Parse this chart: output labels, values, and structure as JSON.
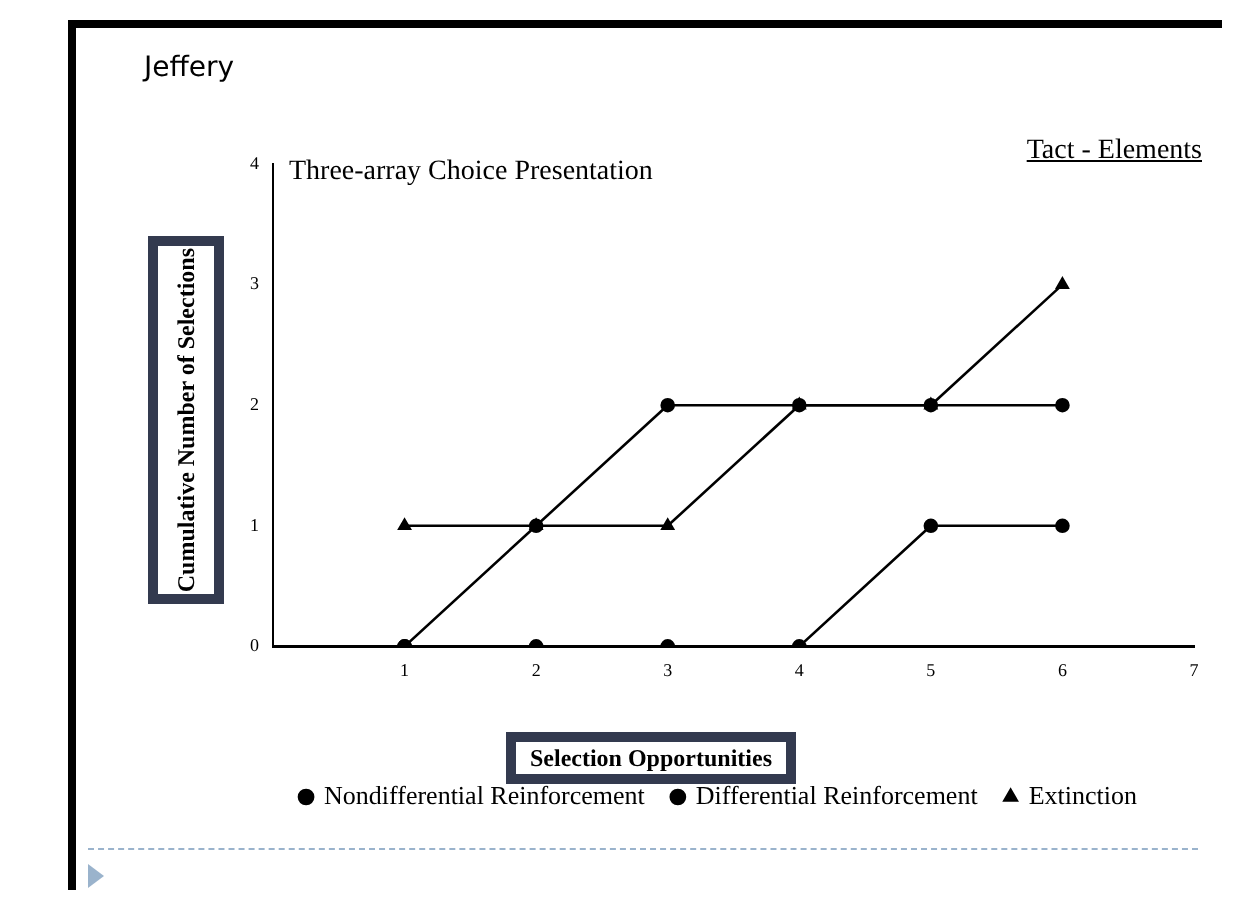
{
  "chart_data": {
    "type": "line",
    "title": "Jeffery",
    "xlabel": "Selection Opportunities",
    "ylabel": "Cumulative Number of Selections",
    "annotations": [
      "Three-array Choice Presentation",
      "Tact - Elements"
    ],
    "x": [
      1,
      2,
      3,
      4,
      5,
      6
    ],
    "xlim": [
      0,
      7
    ],
    "xticks": [
      1,
      2,
      3,
      4,
      5,
      6,
      7
    ],
    "ylim": [
      0,
      4
    ],
    "yticks": [
      0,
      1,
      2,
      3,
      4
    ],
    "series": [
      {
        "name": "Nondifferential Reinforcement",
        "color": "#000000",
        "marker": "circle",
        "values": [
          0,
          0,
          0,
          0,
          1,
          1
        ]
      },
      {
        "name": "Differential Reinforcement",
        "color": "#000000",
        "marker": "circle",
        "values": [
          0,
          1,
          2,
          2,
          2,
          2
        ]
      },
      {
        "name": "Extinction",
        "color": "#000000",
        "marker": "triangle",
        "values": [
          1,
          1,
          1,
          2,
          2,
          3
        ]
      }
    ],
    "grid": false,
    "legend": "bottom",
    "line_style": "solid"
  }
}
